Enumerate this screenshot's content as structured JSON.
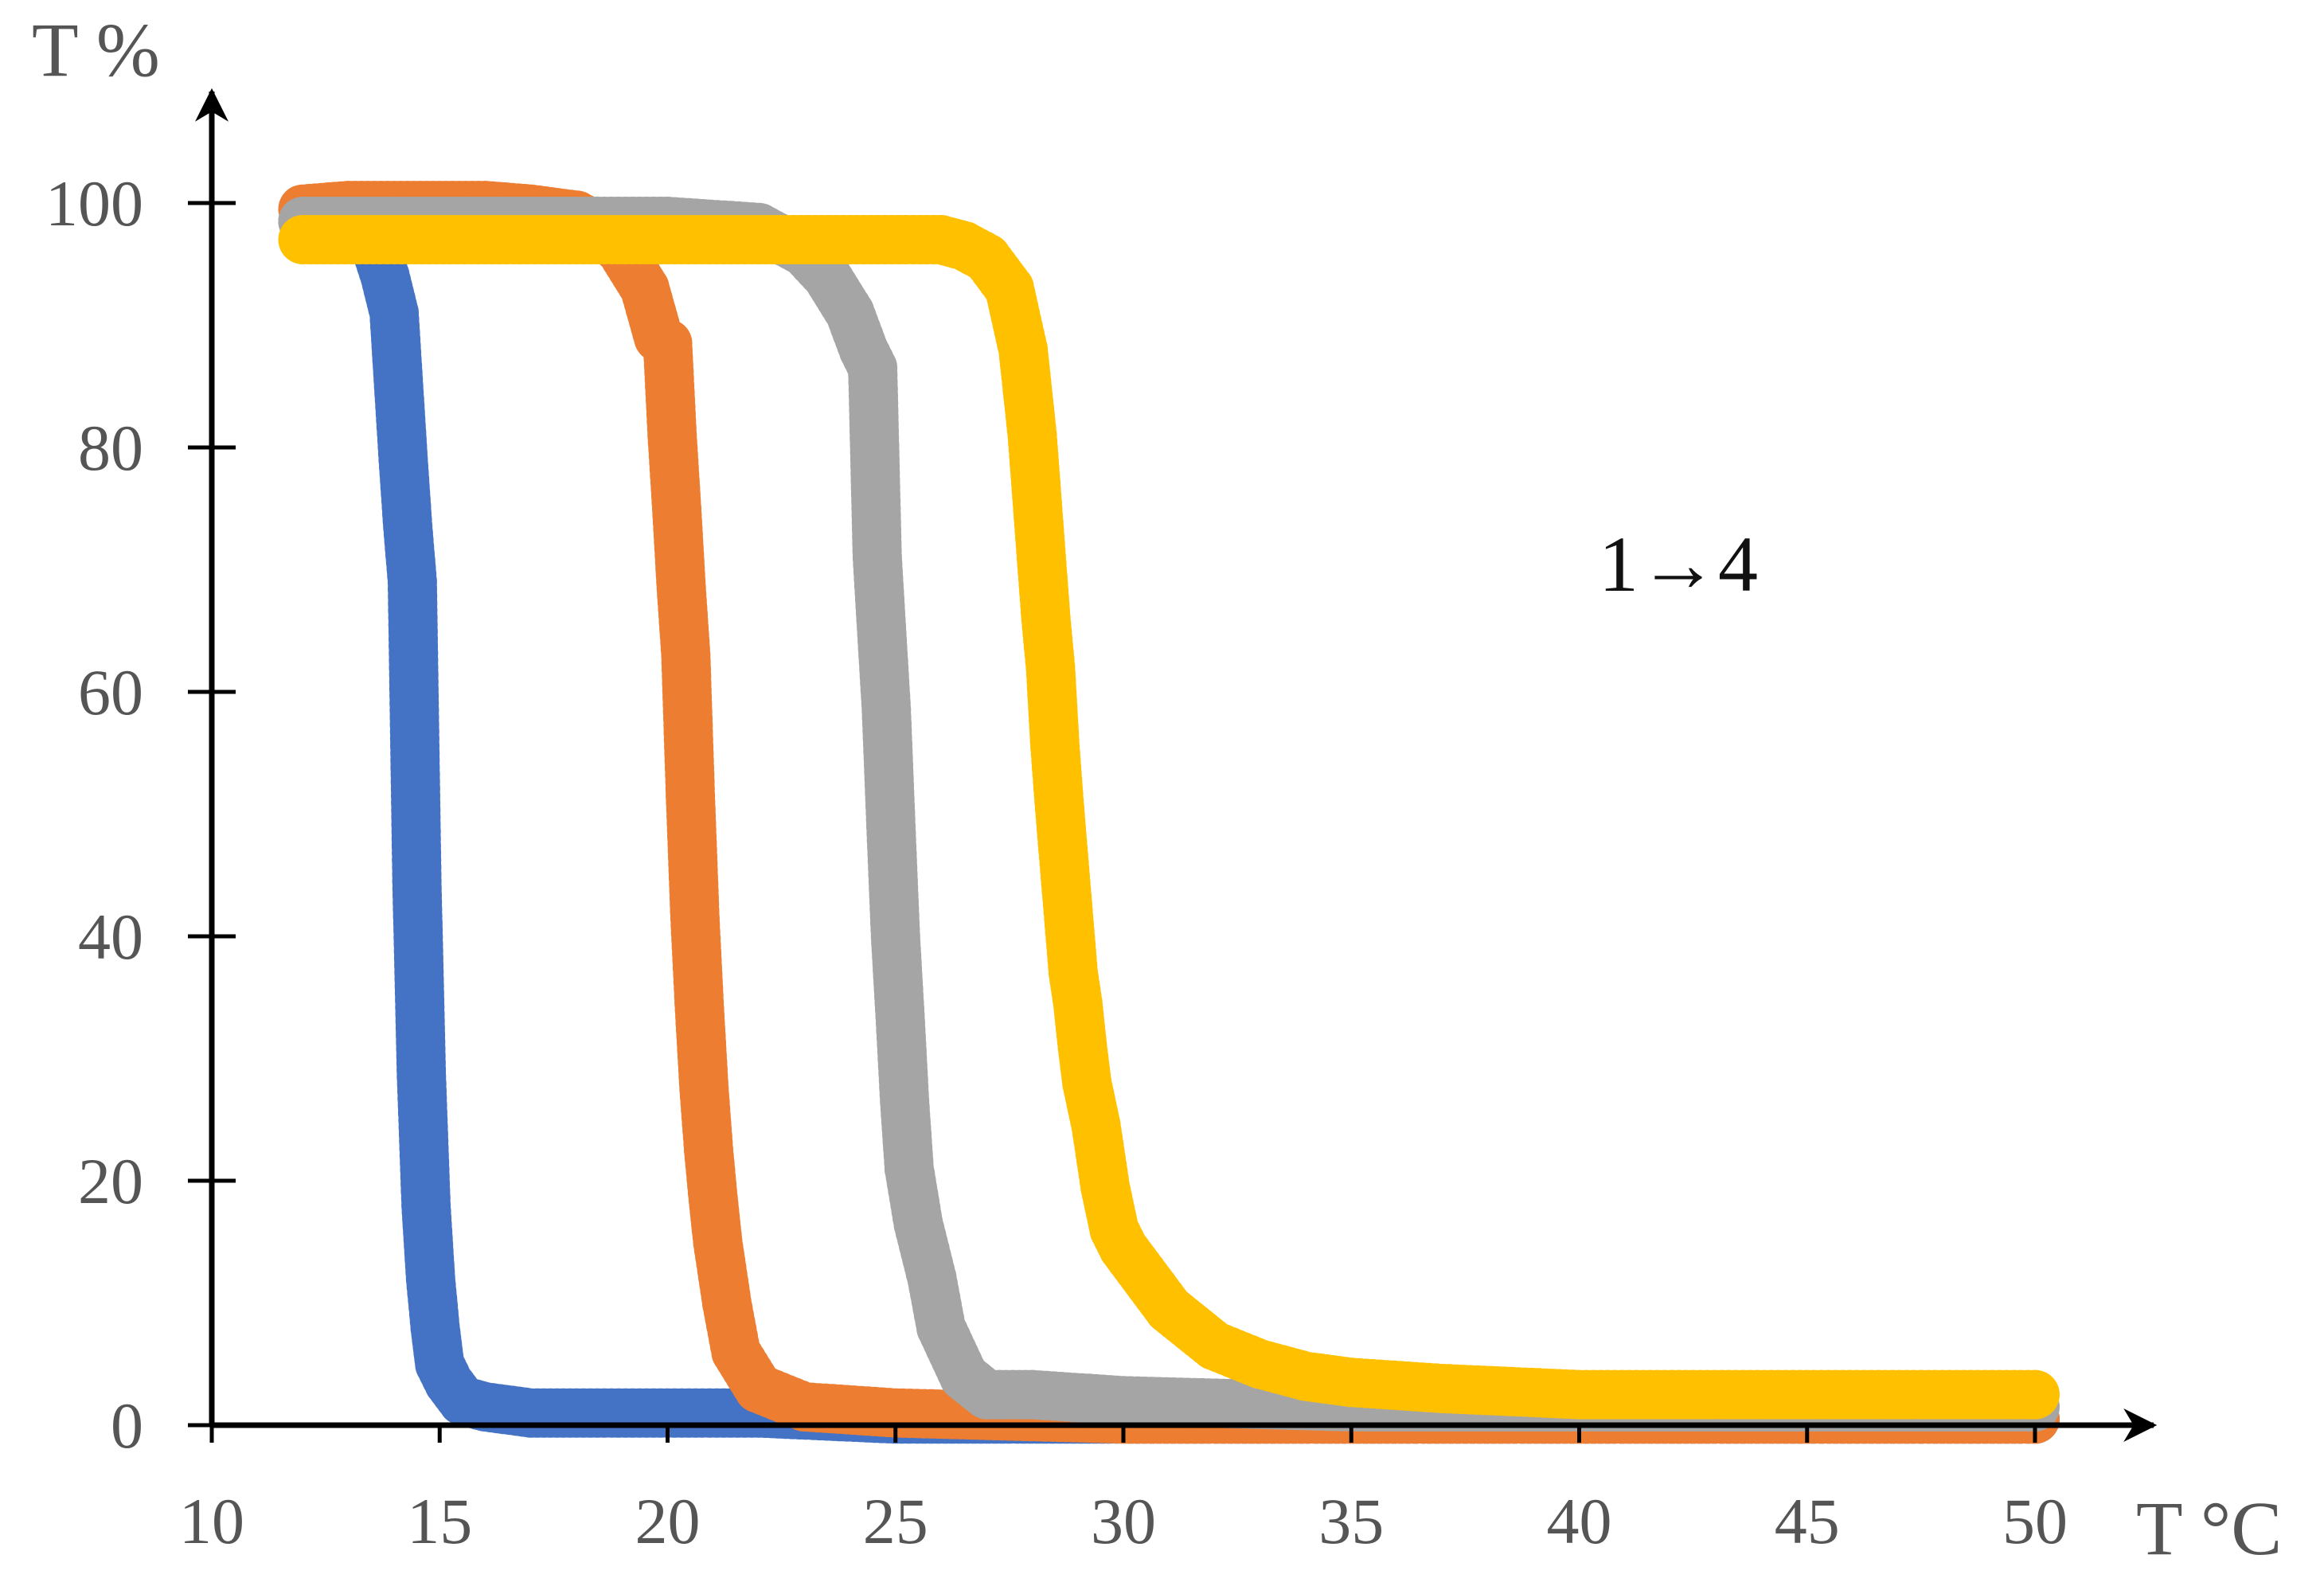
{
  "chart_data": {
    "type": "line",
    "title": "",
    "xlabel": "T °C",
    "ylabel": "T %",
    "xlim": [
      10,
      50
    ],
    "ylim": [
      0,
      100
    ],
    "xticks": [
      "10",
      "15",
      "20",
      "25",
      "30",
      "35",
      "40",
      "45",
      "50"
    ],
    "yticks": [
      "0",
      "20",
      "40",
      "60",
      "80",
      "100"
    ],
    "grid": false,
    "legend": "none",
    "annotation": "1→4",
    "series": [
      {
        "color": "#4472C4",
        "x": [
          12.0,
          12.5,
          13.0,
          13.5,
          13.8,
          14.0,
          14.1,
          14.2,
          14.3,
          14.4,
          14.5,
          14.6,
          14.7,
          14.8,
          14.9,
          15.0,
          15.2,
          15.5,
          16.0,
          17.0,
          18.0,
          20.0,
          22.0,
          25.0,
          30.0,
          35.0,
          40.0,
          45.0,
          50.0
        ],
        "y": [
          98.5,
          98.5,
          98.0,
          97.5,
          94.0,
          91.0,
          85.0,
          79.0,
          73.5,
          69.0,
          44.5,
          28.5,
          18.0,
          12.0,
          8.0,
          5.0,
          3.5,
          2.0,
          1.5,
          1.0,
          1.0,
          1.0,
          1.0,
          0.5,
          0.5,
          0.5,
          0.5,
          0.5,
          0.5
        ]
      },
      {
        "color": "#ED7D31",
        "x": [
          12.0,
          13.0,
          14.0,
          15.0,
          16.0,
          17.0,
          18.0,
          18.5,
          19.0,
          19.5,
          19.8,
          20.0,
          20.1,
          20.2,
          20.3,
          20.4,
          20.5,
          20.6,
          20.7,
          20.8,
          20.9,
          21.0,
          21.1,
          21.3,
          21.5,
          22.0,
          23.0,
          25.0,
          30.0,
          35.0,
          40.0,
          45.0,
          50.0
        ],
        "y": [
          99.5,
          99.8,
          99.8,
          99.8,
          99.8,
          99.5,
          99.0,
          98.0,
          96.0,
          93.0,
          89.0,
          88.5,
          81.0,
          75.0,
          68.5,
          63.0,
          51.5,
          41.5,
          34.0,
          27.5,
          22.5,
          18.5,
          15.0,
          10.0,
          6.0,
          3.0,
          1.5,
          1.0,
          0.5,
          0.5,
          0.5,
          0.5,
          0.5
        ]
      },
      {
        "color": "#A5A5A5",
        "x": [
          12.0,
          14.0,
          16.0,
          18.0,
          20.0,
          22.0,
          23.0,
          23.5,
          24.0,
          24.3,
          24.5,
          24.6,
          24.8,
          24.9,
          25.0,
          25.1,
          25.2,
          25.3,
          25.5,
          25.8,
          26.0,
          26.5,
          27.0,
          28.0,
          30.0,
          35.0,
          40.0,
          45.0,
          50.0
        ],
        "y": [
          98.5,
          98.5,
          98.5,
          98.5,
          98.5,
          98.0,
          96.0,
          94.0,
          91.0,
          88.0,
          86.5,
          71.0,
          58.5,
          49.0,
          40.0,
          33.5,
          26.5,
          21.0,
          16.5,
          12.0,
          8.0,
          4.0,
          2.5,
          2.5,
          2.0,
          1.5,
          1.5,
          1.5,
          1.5
        ]
      },
      {
        "color": "#FFC000",
        "x": [
          12.0,
          14.0,
          16.0,
          18.0,
          20.0,
          22.0,
          24.0,
          26.0,
          26.5,
          27.0,
          27.5,
          27.8,
          28.0,
          28.1,
          28.2,
          28.3,
          28.4,
          28.5,
          28.6,
          28.7,
          28.8,
          28.9,
          29.0,
          29.1,
          29.2,
          29.4,
          29.6,
          29.8,
          30.0,
          30.5,
          31.0,
          31.5,
          32.0,
          33.0,
          34.0,
          35.0,
          37.0,
          40.0,
          45.0,
          50.0
        ],
        "y": [
          97.0,
          97.0,
          97.0,
          97.0,
          97.0,
          97.0,
          97.0,
          97.0,
          96.5,
          95.5,
          93.0,
          88.0,
          81.0,
          76.0,
          71.0,
          66.0,
          62.0,
          55.5,
          50.5,
          46.0,
          41.5,
          37.0,
          34.5,
          31.0,
          28.0,
          24.5,
          19.5,
          16.0,
          14.5,
          12.0,
          9.5,
          8.0,
          6.5,
          5.0,
          4.0,
          3.5,
          3.0,
          2.5,
          2.5,
          2.5
        ]
      }
    ]
  }
}
